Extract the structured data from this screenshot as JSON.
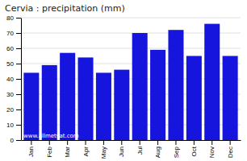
{
  "chart_data": {
    "type": "bar",
    "title": "Cervia : precipitation (mm)",
    "categories": [
      "Jan",
      "Feb",
      "Mar",
      "Apr",
      "May",
      "Jun",
      "Jul",
      "Aug",
      "Sep",
      "Oct",
      "Nov",
      "Dec"
    ],
    "values": [
      44,
      49,
      57,
      54,
      44,
      46,
      70,
      59,
      72,
      55,
      76,
      55
    ],
    "color": "#1515dd",
    "ylim": [
      0,
      80
    ],
    "yticks": [
      0,
      10,
      20,
      30,
      40,
      50,
      60,
      70,
      80
    ],
    "grid": true,
    "annotations": [
      "www.allmetsat.com"
    ]
  }
}
